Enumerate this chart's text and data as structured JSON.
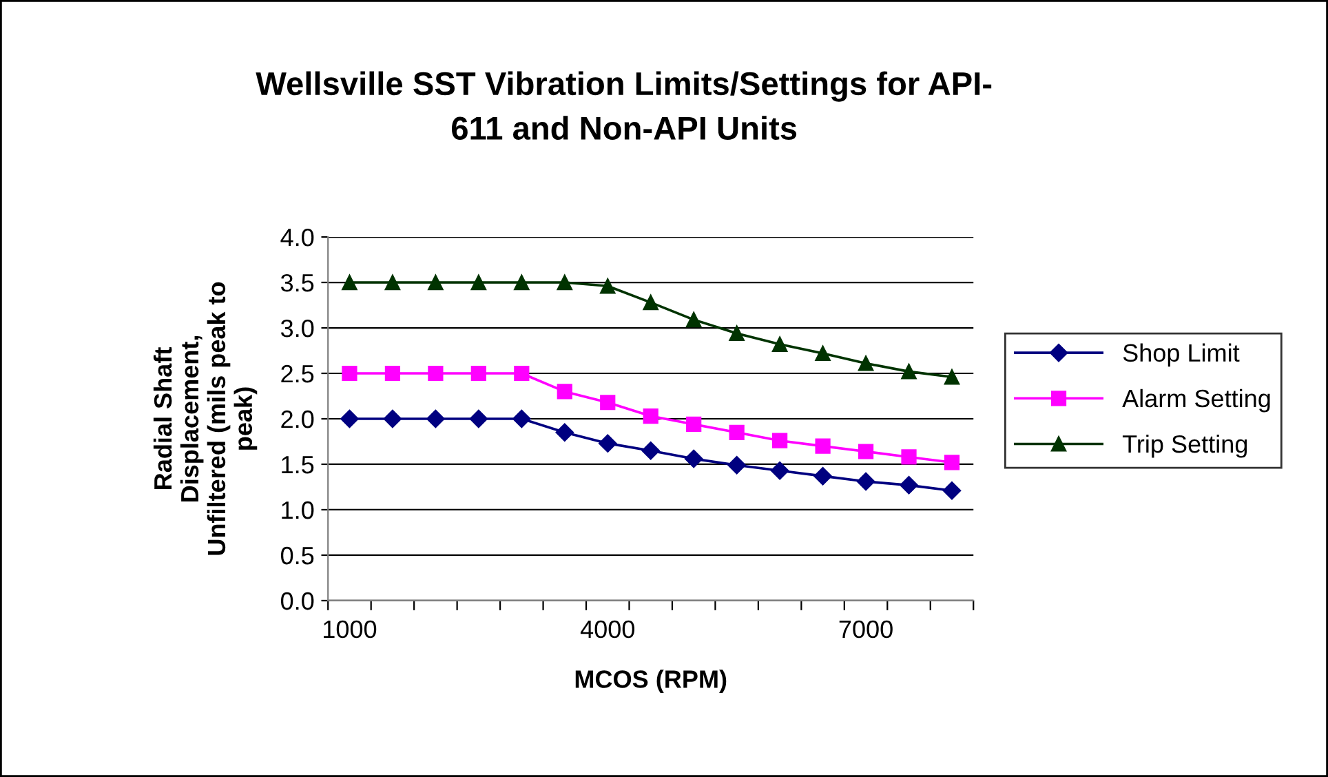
{
  "chart_data": {
    "type": "line",
    "title": "Wellsville SST Vibration Limits/Settings for API-\n611 and Non-API Units",
    "xlabel": "MCOS (RPM)",
    "ylabel": "Radial Shaft\nDisplacement,\nUnfiltered (mils peak to\npeak)",
    "categories": [
      "1000",
      null,
      null,
      null,
      null,
      null,
      "4000",
      null,
      null,
      null,
      null,
      null,
      "7000",
      null,
      null
    ],
    "series": [
      {
        "name": "Shop Limit",
        "color": "#000080",
        "marker": "diamond",
        "values": [
          2.0,
          2.0,
          2.0,
          2.0,
          2.0,
          1.85,
          1.73,
          1.65,
          1.56,
          1.49,
          1.43,
          1.37,
          1.31,
          1.27,
          1.21
        ]
      },
      {
        "name": "Alarm Setting",
        "color": "#ff00ff",
        "marker": "square",
        "values": [
          2.5,
          2.5,
          2.5,
          2.5,
          2.5,
          2.3,
          2.18,
          2.03,
          1.94,
          1.85,
          1.76,
          1.7,
          1.64,
          1.58,
          1.52
        ]
      },
      {
        "name": "Trip Setting",
        "color": "#003300",
        "marker": "triangle",
        "values": [
          3.5,
          3.5,
          3.5,
          3.5,
          3.5,
          3.5,
          3.46,
          3.28,
          3.09,
          2.94,
          2.82,
          2.72,
          2.61,
          2.52,
          2.46
        ]
      }
    ],
    "ylim": [
      0.0,
      4.0
    ],
    "yticks": [
      {
        "value": 0,
        "label": "0.0"
      },
      {
        "value": 0.5,
        "label": "0.5"
      },
      {
        "value": 1,
        "label": "1.0"
      },
      {
        "value": 1.5,
        "label": "1.5"
      },
      {
        "value": 2,
        "label": "2.0"
      },
      {
        "value": 2.5,
        "label": "2.5"
      },
      {
        "value": 3,
        "label": "3.0"
      },
      {
        "value": 3.5,
        "label": "3.5"
      },
      {
        "value": 4,
        "label": "4.0"
      }
    ],
    "grid": "y",
    "legend": "right",
    "line_style": "solid"
  }
}
